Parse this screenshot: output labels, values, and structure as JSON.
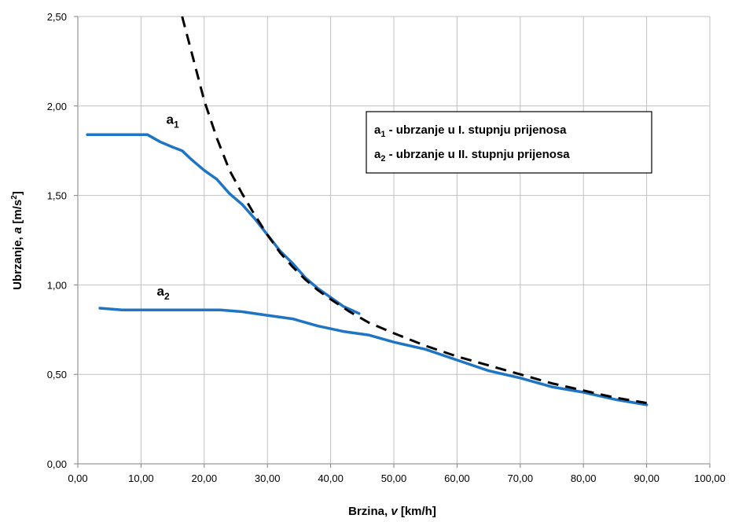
{
  "chart_data": {
    "type": "line",
    "xlabel": {
      "main": "Brzina, ",
      "var": "v",
      "unit": " [km/h]"
    },
    "ylabel": {
      "main": "Ubrzanje, ",
      "var": "a",
      "unit_pre": " [m/s",
      "unit_sup": "2",
      "unit_post": "]"
    },
    "xlim": [
      0,
      100
    ],
    "ylim": [
      0,
      2.5
    ],
    "x_ticks": [
      "0,00",
      "10,00",
      "20,00",
      "30,00",
      "40,00",
      "50,00",
      "60,00",
      "70,00",
      "80,00",
      "90,00",
      "100,00"
    ],
    "y_ticks": [
      "0,00",
      "0,50",
      "1,00",
      "1,50",
      "2,00",
      "2,50"
    ],
    "grid": true,
    "series": [
      {
        "name": "a1",
        "style": "solid",
        "color": "#1f74c4",
        "points": [
          [
            1.5,
            1.84
          ],
          [
            5,
            1.84
          ],
          [
            8,
            1.84
          ],
          [
            11,
            1.84
          ],
          [
            13,
            1.8
          ],
          [
            15,
            1.77
          ],
          [
            16.5,
            1.75
          ],
          [
            18,
            1.7
          ],
          [
            20,
            1.64
          ],
          [
            22,
            1.59
          ],
          [
            24,
            1.51
          ],
          [
            26,
            1.45
          ],
          [
            28,
            1.37
          ],
          [
            30,
            1.28
          ],
          [
            32,
            1.19
          ],
          [
            34,
            1.12
          ],
          [
            36,
            1.04
          ],
          [
            38,
            0.98
          ],
          [
            40,
            0.93
          ],
          [
            42,
            0.88
          ],
          [
            44.5,
            0.84
          ]
        ]
      },
      {
        "name": "a2",
        "style": "solid",
        "color": "#1f74c4",
        "points": [
          [
            3.5,
            0.87
          ],
          [
            7,
            0.86
          ],
          [
            10,
            0.86
          ],
          [
            15,
            0.86
          ],
          [
            20,
            0.86
          ],
          [
            22.5,
            0.86
          ],
          [
            26,
            0.85
          ],
          [
            30,
            0.83
          ],
          [
            34,
            0.81
          ],
          [
            38,
            0.77
          ],
          [
            42,
            0.74
          ],
          [
            46,
            0.72
          ],
          [
            50,
            0.68
          ],
          [
            55,
            0.64
          ],
          [
            60,
            0.58
          ],
          [
            65,
            0.52
          ],
          [
            70,
            0.48
          ],
          [
            75,
            0.43
          ],
          [
            80,
            0.4
          ],
          [
            85,
            0.36
          ],
          [
            90,
            0.33
          ]
        ]
      },
      {
        "name": "",
        "style": "dashed",
        "color": "#000000",
        "points": [
          [
            16.5,
            2.5
          ],
          [
            18,
            2.3
          ],
          [
            20,
            2.03
          ],
          [
            22,
            1.82
          ],
          [
            24,
            1.64
          ],
          [
            26,
            1.51
          ],
          [
            28,
            1.39
          ],
          [
            30,
            1.28
          ],
          [
            32,
            1.18
          ],
          [
            34,
            1.1
          ],
          [
            36,
            1.03
          ],
          [
            38,
            0.97
          ],
          [
            40,
            0.92
          ],
          [
            43,
            0.85
          ],
          [
            46,
            0.79
          ],
          [
            50,
            0.73
          ],
          [
            55,
            0.66
          ],
          [
            60,
            0.6
          ],
          [
            65,
            0.55
          ],
          [
            70,
            0.5
          ],
          [
            75,
            0.45
          ],
          [
            80,
            0.41
          ],
          [
            85,
            0.37
          ],
          [
            90,
            0.34
          ]
        ]
      }
    ],
    "series_labels": [
      {
        "base": "a",
        "sub": "1",
        "x": 14,
        "y": 1.9
      },
      {
        "base": "a",
        "sub": "2",
        "x": 12.5,
        "y": 0.94
      }
    ],
    "legend": {
      "placement": "top-right",
      "entries": [
        {
          "base": "a",
          "sub": "1",
          "text": " - ubrzanje u I. stupnju prijenosa"
        },
        {
          "base": "a",
          "sub": "2",
          "text": " - ubrzanje u II. stupnju prijenosa"
        }
      ]
    }
  }
}
